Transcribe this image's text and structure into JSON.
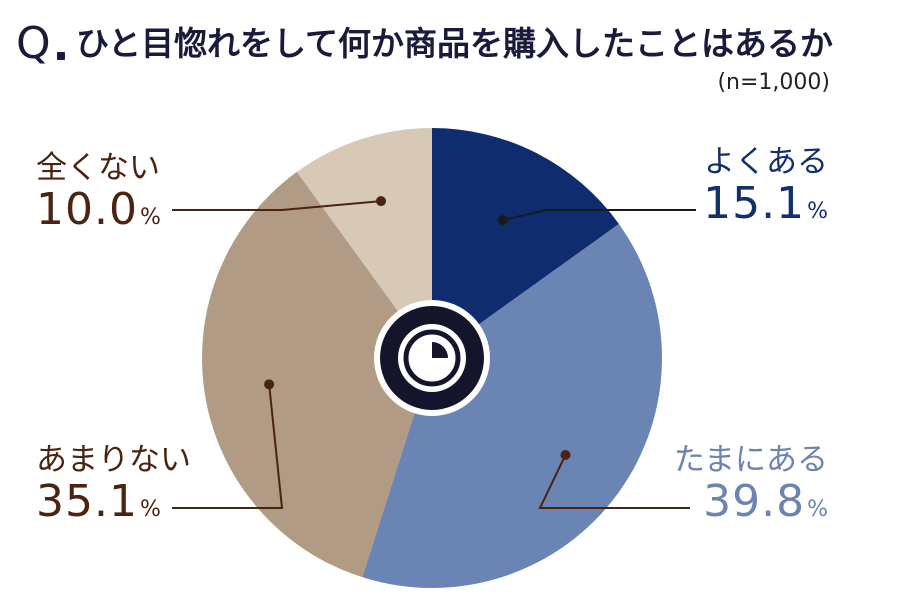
{
  "header": {
    "q_mark": "Q",
    "title": "ひと目惚れをして何か商品を購入したことはあるか",
    "sample_note": "(n=1,000)"
  },
  "chart_data": {
    "type": "pie",
    "title": "ひと目惚れをして何か商品を購入したことはあるか",
    "slices": [
      {
        "label": "よくある",
        "value": 15.1,
        "color": "#0f2c6e",
        "label_color": "#12306a",
        "side": "right-top"
      },
      {
        "label": "たまにある",
        "value": 39.8,
        "color": "#6a85b4",
        "label_color": "#6b84b0",
        "side": "right-bottom"
      },
      {
        "label": "あまりない",
        "value": 35.1,
        "color": "#b19b84",
        "label_color": "#4a2410",
        "side": "left-bottom"
      },
      {
        "label": "全くない",
        "value": 10.0,
        "color": "#d8c8b6",
        "label_color": "#4a2410",
        "side": "left-top"
      }
    ],
    "unit": "%",
    "start": "top",
    "direction": "clockwise",
    "center_icon": "clock-icon"
  },
  "labels": [
    {
      "name": "よくある",
      "value": "15.1",
      "unit": "%"
    },
    {
      "name": "たまにある",
      "value": "39.8",
      "unit": "%"
    },
    {
      "name": "あまりない",
      "value": "35.1",
      "unit": "%"
    },
    {
      "name": "全くない",
      "value": "10.0",
      "unit": "%"
    }
  ]
}
